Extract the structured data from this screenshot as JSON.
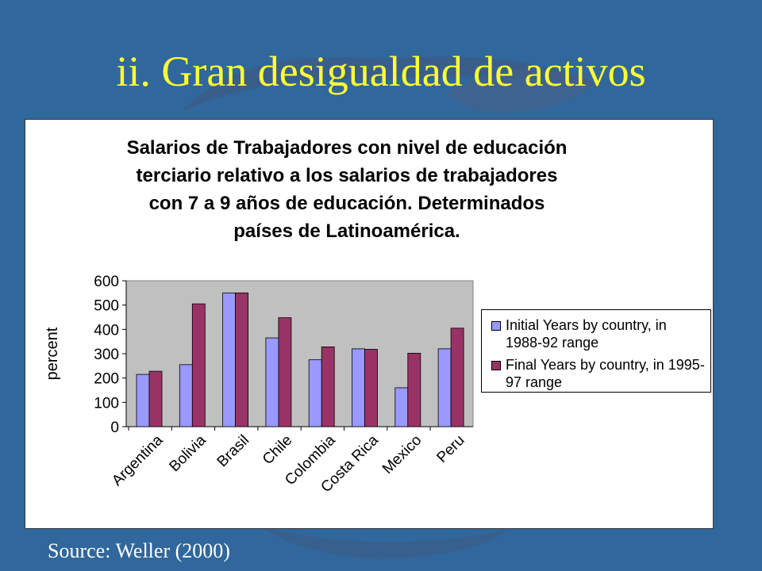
{
  "slide": {
    "title": "ii. Gran desigualdad de activos",
    "source": "Source: Weller (2000)"
  },
  "colors": {
    "background": "#30679c",
    "title": "#ffff33",
    "plot_area": "#c0c0c0",
    "series_initial": "#9999ff",
    "series_final": "#993366"
  },
  "chart_data": {
    "type": "bar",
    "title_lines": [
      "Salarios de Trabajadores con nivel de educación",
      "terciario relativo a los salarios de trabajadores",
      "con 7 a 9 años de educación. Determinados",
      "países de Latinoamérica."
    ],
    "xlabel": "",
    "ylabel": "percent",
    "ylim": [
      0,
      600
    ],
    "yticks": [
      0,
      100,
      200,
      300,
      400,
      500,
      600
    ],
    "categories": [
      "Argentina",
      "Bolivia",
      "Brasil",
      "Chile",
      "Colombia",
      "Costa Rica",
      "Mexico",
      "Peru"
    ],
    "series": [
      {
        "name": "Initial Years by country, in 1988-92 range",
        "color": "#9999ff",
        "values": [
          215,
          255,
          550,
          365,
          275,
          320,
          160,
          320
        ]
      },
      {
        "name": "Final Years by country, in 1995-97 range",
        "color": "#993366",
        "values": [
          228,
          505,
          550,
          448,
          328,
          318,
          302,
          405
        ]
      }
    ],
    "legend_position": "right",
    "grid": false
  }
}
